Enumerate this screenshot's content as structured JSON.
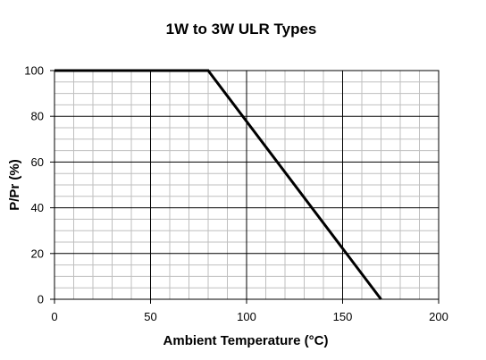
{
  "chart_data": {
    "type": "line",
    "title": "1W to 3W ULR Types",
    "xlabel": "Ambient Temperature (°C)",
    "ylabel": "P/Pr (%)",
    "xlim": [
      0,
      200
    ],
    "ylim": [
      0,
      100
    ],
    "x_ticks": [
      "0",
      "50",
      "100",
      "150",
      "200"
    ],
    "y_ticks": [
      "0",
      "20",
      "40",
      "60",
      "80",
      "100"
    ],
    "grid": true,
    "legend": "none",
    "series": [
      {
        "x": [
          0,
          80,
          170
        ],
        "y": [
          100,
          100,
          0
        ]
      }
    ],
    "colors": {
      "line": "#000000",
      "major_grid": "#000000",
      "minor_grid": "#bfbfbf"
    }
  }
}
